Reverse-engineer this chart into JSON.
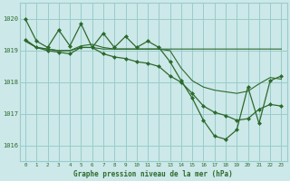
{
  "title": "Graphe pression niveau de la mer (hPa)",
  "bg_color": "#cce8e8",
  "grid_color": "#99cccc",
  "line_color": "#2d6a2d",
  "xlim": [
    -0.5,
    23.5
  ],
  "ylim": [
    1015.5,
    1020.5
  ],
  "yticks": [
    1016,
    1017,
    1018,
    1019,
    1020
  ],
  "xticks": [
    0,
    1,
    2,
    3,
    4,
    5,
    6,
    7,
    8,
    9,
    10,
    11,
    12,
    13,
    14,
    15,
    16,
    17,
    18,
    19,
    20,
    21,
    22,
    23
  ],
  "series_zigzag": [
    1020.0,
    1019.3,
    1019.1,
    1019.65,
    1019.15,
    1019.85,
    1019.1,
    1019.55,
    1019.1,
    1019.45,
    1019.1,
    1019.3,
    1019.1,
    1018.65,
    1018.05,
    1017.5,
    1016.8,
    1016.3,
    1016.2,
    1016.5,
    1017.85,
    1016.7,
    1018.05,
    1018.2
  ],
  "series_mid": [
    1019.35,
    1019.1,
    1019.0,
    1018.95,
    1018.9,
    1019.1,
    1019.1,
    1018.9,
    1018.8,
    1018.75,
    1018.65,
    1018.6,
    1018.5,
    1018.2,
    1018.0,
    1017.65,
    1017.25,
    1017.05,
    1016.95,
    1016.8,
    1016.85,
    1017.15,
    1017.3,
    1017.25
  ],
  "series_upper1": [
    1019.3,
    1019.1,
    1019.05,
    1019.0,
    1019.0,
    1019.15,
    1019.2,
    1019.1,
    1019.05,
    1019.05,
    1019.05,
    1019.05,
    1019.05,
    1019.0,
    1018.45,
    1018.05,
    1017.85,
    1017.75,
    1017.7,
    1017.65,
    1017.72,
    1017.95,
    1018.15,
    1018.1
  ],
  "series_flat": [
    1019.3,
    1019.1,
    1019.05,
    1019.0,
    1019.0,
    1019.1,
    1019.1,
    1019.05,
    1019.05,
    1019.05,
    1019.05,
    1019.05,
    1019.05,
    1019.05,
    1019.05,
    1019.05,
    1019.05,
    1019.05,
    1019.05,
    1019.05,
    1019.05,
    1019.05,
    1019.05,
    1019.05
  ]
}
